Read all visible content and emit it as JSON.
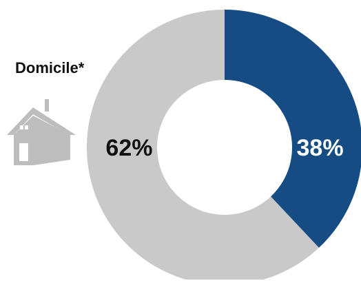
{
  "chart_data": {
    "type": "pie",
    "title": "",
    "categories": [
      "",
      "Domicile*"
    ],
    "values": [
      38,
      62
    ],
    "labels": [
      "38%",
      "62%"
    ],
    "colors": [
      "#164c84",
      "#c9c9c9"
    ],
    "label_colors": [
      "#ffffff",
      "#111111"
    ],
    "donut": true,
    "start": "12 o'clock, clockwise"
  },
  "legend": {
    "label": "Domicile*",
    "icon": "house-icon",
    "icon_color": "#bdbdbd"
  }
}
